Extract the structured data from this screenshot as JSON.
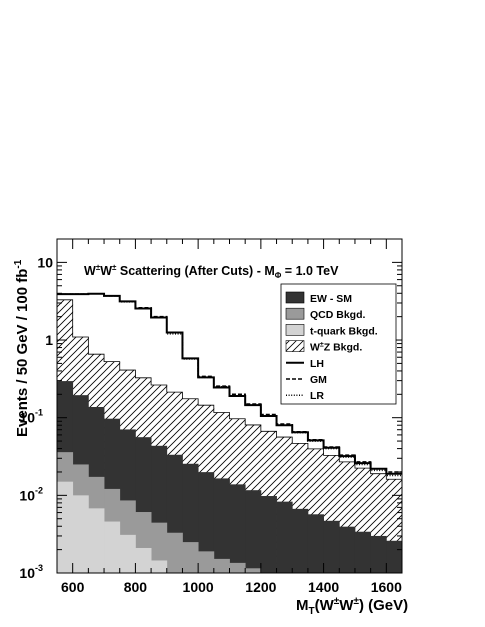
{
  "chart_data": {
    "type": "histogram",
    "title": "W±W± Scattering (After Cuts) - MΦ = 1.0 TeV",
    "xlabel": "MT(W±W±) (GeV)",
    "ylabel": "Events / 50 GeV / 100 fb-1",
    "xlim": [
      550,
      1650
    ],
    "ylim": [
      0.001,
      20
    ],
    "yscale": "log",
    "grid": false,
    "legend_position": "top-right",
    "x_ticks": [
      600,
      800,
      1000,
      1200,
      1400,
      1600
    ],
    "y_ticks": [
      {
        "value": 0.001,
        "label": "10-3"
      },
      {
        "value": 0.01,
        "label": "10-2"
      },
      {
        "value": 0.1,
        "label": "10-1"
      },
      {
        "value": 1,
        "label": "1"
      },
      {
        "value": 10,
        "label": "10"
      }
    ],
    "bin_edges": [
      550,
      600,
      650,
      700,
      750,
      800,
      850,
      900,
      950,
      1000,
      1050,
      1100,
      1150,
      1200,
      1250,
      1300,
      1350,
      1400,
      1450,
      1500,
      1550,
      1600,
      1650
    ],
    "stack": [
      {
        "name": "t-quark Bkgd.",
        "fill": "#d3d3d3",
        "values": [
          0.015,
          0.01,
          0.0068,
          0.0046,
          0.0031,
          0.0021,
          0.00145,
          0.001,
          0.0007,
          0.0005,
          0.0004,
          0.0003,
          0.0002,
          0.00015,
          0.0001,
          0.0001,
          0.0001,
          0.0001,
          0.0001,
          0.0001,
          0.0001,
          0.0001
        ]
      },
      {
        "name": "QCD Bkgd.",
        "fill": "#9a9a9a",
        "values": [
          0.021,
          0.015,
          0.0105,
          0.0075,
          0.0055,
          0.004,
          0.003,
          0.0023,
          0.0018,
          0.0014,
          0.00112,
          0.00105,
          0.00095,
          0.00065,
          0.0004,
          0.0003,
          0.0002,
          0.0002,
          0.00015,
          0.0001,
          0.0001,
          0.0001
        ]
      },
      {
        "name": "EW - SM",
        "fill": "#333333",
        "values": [
          0.26,
          0.17,
          0.12,
          0.085,
          0.062,
          0.05,
          0.039,
          0.03,
          0.023,
          0.018,
          0.015,
          0.0125,
          0.0105,
          0.009,
          0.0078,
          0.0063,
          0.0054,
          0.0044,
          0.0037,
          0.0032,
          0.0028,
          0.0024
        ]
      },
      {
        "name": "W±Z Bkgd.",
        "fill": "hatch",
        "values": [
          3.0,
          0.9,
          0.52,
          0.43,
          0.34,
          0.27,
          0.22,
          0.18,
          0.15,
          0.125,
          0.1,
          0.083,
          0.069,
          0.057,
          0.048,
          0.04,
          0.034,
          0.028,
          0.023,
          0.019,
          0.016,
          0.0135
        ]
      }
    ],
    "lines": [
      {
        "name": "LH",
        "dash": "solid",
        "values": [
          3.9,
          3.9,
          3.95,
          3.7,
          3.15,
          2.55,
          1.95,
          1.25,
          0.58,
          0.33,
          0.245,
          0.19,
          0.145,
          0.105,
          0.08,
          0.065,
          0.051,
          0.041,
          0.032,
          0.026,
          0.022,
          0.019
        ]
      },
      {
        "name": "GM",
        "dash": "dashed",
        "values": [
          3.9,
          3.9,
          3.95,
          3.7,
          3.15,
          2.6,
          2.0,
          1.25,
          0.58,
          0.34,
          0.255,
          0.2,
          0.15,
          0.11,
          0.083,
          0.066,
          0.052,
          0.042,
          0.033,
          0.027,
          0.022,
          0.02
        ]
      },
      {
        "name": "LR",
        "dash": "dotted",
        "values": [
          3.9,
          3.9,
          3.95,
          3.7,
          3.1,
          2.55,
          1.95,
          1.2,
          0.57,
          0.33,
          0.25,
          0.19,
          0.145,
          0.105,
          0.08,
          0.064,
          0.05,
          0.04,
          0.031,
          0.025,
          0.021,
          0.018
        ]
      }
    ],
    "legend_order": [
      "EW - SM",
      "QCD Bkgd.",
      "t-quark Bkgd.",
      "W±Z Bkgd.",
      "LH",
      "GM",
      "LR"
    ]
  }
}
